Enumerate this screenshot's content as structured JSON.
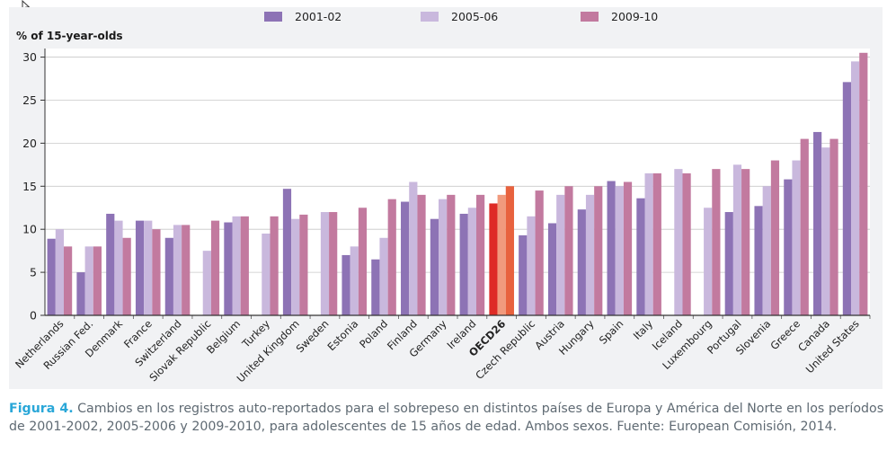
{
  "chart_data": {
    "type": "bar",
    "ylabel": "% of 15-year-olds",
    "ylim": [
      0,
      31
    ],
    "yticks": [
      0,
      5,
      10,
      15,
      20,
      25,
      30
    ],
    "grid": "horizontal",
    "legend_position": "top",
    "highlight_category": "OECD26",
    "categories": [
      "Netherlands",
      "Russian Fed.",
      "Denmark",
      "France",
      "Switzerland",
      "Slovak Republic",
      "Belgium",
      "Turkey",
      "United Kingdom",
      "Sweden",
      "Estonia",
      "Poland",
      "Finland",
      "Germany",
      "Ireland",
      "OECD26",
      "Czech Republic",
      "Austria",
      "Hungary",
      "Spain",
      "Italy",
      "Iceland",
      "Luxembourg",
      "Portugal",
      "Slovenia",
      "Greece",
      "Canada",
      "United States"
    ],
    "series": [
      {
        "name": "2001-02",
        "color": "#8d73b5",
        "values": [
          8.9,
          5.0,
          11.8,
          11.0,
          9.0,
          null,
          10.8,
          null,
          14.7,
          null,
          7.0,
          6.5,
          13.2,
          11.2,
          11.8,
          13.0,
          9.3,
          10.7,
          12.3,
          15.6,
          13.6,
          null,
          null,
          12.0,
          12.7,
          15.8,
          21.3,
          27.1
        ]
      },
      {
        "name": "2005-06",
        "color": "#c9b8dd",
        "values": [
          10.0,
          8.0,
          11.0,
          11.0,
          10.5,
          7.5,
          11.5,
          9.5,
          11.2,
          12.0,
          8.0,
          9.0,
          15.5,
          13.5,
          12.5,
          14.0,
          11.5,
          14.0,
          14.0,
          15.0,
          16.5,
          17.0,
          12.5,
          17.5,
          15.0,
          18.0,
          19.5,
          29.5
        ]
      },
      {
        "name": "2009-10",
        "color": "#c27a9f",
        "values": [
          8.0,
          8.0,
          9.0,
          10.0,
          10.5,
          11.0,
          11.5,
          11.5,
          11.7,
          12.0,
          12.5,
          13.5,
          14.0,
          14.0,
          14.0,
          15.0,
          14.5,
          15.0,
          15.0,
          15.5,
          16.5,
          16.5,
          17.0,
          17.0,
          18.0,
          20.5,
          20.5,
          30.5
        ]
      }
    ],
    "highlight_colors": [
      "#de2b26",
      "#f19a7d",
      "#e8623e"
    ]
  },
  "caption": {
    "label": "Figura 4.",
    "text": " Cambios en los registros auto-reportados para el sobrepeso en distintos países de Europa y América del Norte en los períodos de 2001-2002, 2005-2006 y 2009-2010, para adolescentes de 15 años de edad. Ambos sexos. Fuente: European Comisión, 2014."
  },
  "icons": {
    "cursor": "mouse-pointer-icon"
  }
}
